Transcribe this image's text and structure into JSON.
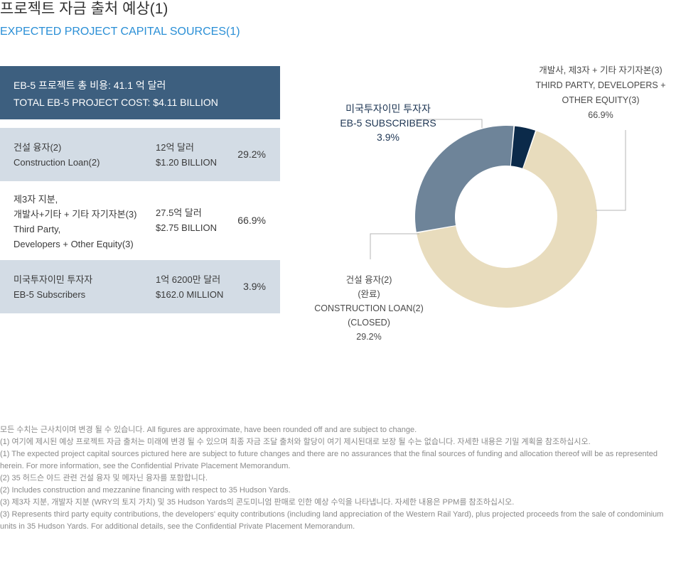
{
  "header": {
    "title_ko": "프로젝트 자금 출처 예상(1)",
    "title_en": "EXPECTED PROJECT CAPITAL SOURCES(1)"
  },
  "total": {
    "ko": "EB-5 프로젝트 총 비용: 41.1 억 달러",
    "en": "TOTAL EB-5 PROJECT COST: $4.11 BILLION"
  },
  "table": {
    "rows": [
      {
        "label": "건설 융자(2)\nConstruction Loan(2)",
        "amount": "12억 달러\n$1.20 BILLION",
        "pct": "29.2%"
      },
      {
        "label": "제3자 지분,\n개발사+기타 + 기타 자기자본(3)\nThird Party,\nDevelopers + Other Equity(3)",
        "amount": "27.5억 달러\n$2.75 BILLION",
        "pct": "66.9%"
      },
      {
        "label": "미국투자이민 투자자\nEB-5 Subscribers",
        "amount": "1억 6200만 달러\n$162.0 MILLION",
        "pct": "3.9%"
      }
    ]
  },
  "chart_data": {
    "type": "pie",
    "donut": true,
    "title": "",
    "slices": [
      {
        "lines": [
          "개발사, 제3자 + 기타 자기자본(3)",
          "THIRD PARTY, DEVELOPERS +",
          "OTHER EQUITY(3)"
        ],
        "pct_label": "66.9%",
        "value": 66.9,
        "color": "#e8dcbd"
      },
      {
        "lines": [
          "건설 융자(2)",
          "(완료)",
          "CONSTRUCTION LOAN(2)",
          "(CLOSED)"
        ],
        "pct_label": "29.2%",
        "value": 29.2,
        "color": "#6e8499"
      },
      {
        "lines": [
          "미국투자이민 투자자",
          "EB-5 SUBSCRIBERS"
        ],
        "pct_label": "3.9%",
        "value": 3.9,
        "color": "#0b2a4a"
      }
    ]
  },
  "footnotes": [
    "모든 수치는 근사치이며 변경 될 수 있습니다. All figures are approximate, have been rounded off and are subject to change.",
    "(1) 여기에 제시된 예상 프로젝트 자금 출처는 미래에 변경 될 수 있으며 최종 자금 조달 출처와 할당이 여기 제시된대로 보장 될 수는 없습니다. 자세한 내용은 기밀 계획을 참조하십시오.",
    "(1) The expected project capital sources pictured here are subject to future changes and there are no assurances that the final sources of funding and allocation thereof will be as represented herein. For more information, see the Confidential Private Placement Memorandum.",
    "(2) 35 허드슨 야드 관련 건설 융자 및 메자닌 융자를 포함합니다.",
    "(2) Includes construction and mezzanine financing with respect to 35 Hudson Yards.",
    "(3) 제3자 지분, 개발자 지분 (WRY의 토지 가치) 및 35 Hudson Yards의 콘도미니엄 판매로 인한 예상 수익을 나타냅니다. 자세한 내용은 PPM를 참조하십시오.",
    "(3) Represents third party equity contributions, the developers' equity contributions (including land appreciation of the Western Rail Yard), plus projected proceeds from the sale of condominium units in 35 Hudson Yards. For additional details, see the Confidential Private Placement Memorandum."
  ]
}
